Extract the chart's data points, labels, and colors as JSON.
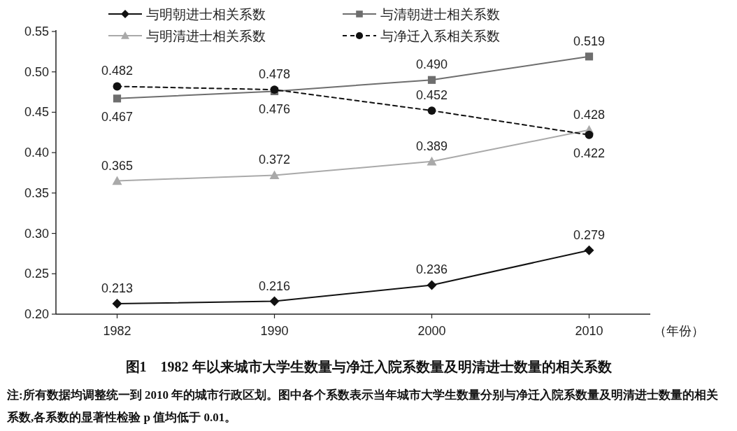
{
  "chart_data": {
    "type": "line",
    "title": "图1　1982 年以来城市大学生数量与净迁入院系数量及明清进士数量的相关系数",
    "xlabel": "（年份）",
    "categories": [
      "1982",
      "1990",
      "2000",
      "2010"
    ],
    "series": [
      {
        "name": "与明朝进士相关系数",
        "color": "#111111",
        "marker": "diamond",
        "line_style": "solid",
        "values": [
          0.213,
          0.216,
          0.236,
          0.279
        ]
      },
      {
        "name": "与清朝进士相关系数",
        "color": "#6e6e6e",
        "marker": "square",
        "line_style": "solid",
        "values": [
          0.467,
          0.476,
          0.49,
          0.519
        ],
        "value_labels": [
          "0.467",
          "0.476",
          "0.490",
          "0.519"
        ]
      },
      {
        "name": "与明清进士相关系数",
        "color": "#a9a9a9",
        "marker": "triangle",
        "line_style": "solid",
        "values": [
          0.365,
          0.372,
          0.389,
          0.428
        ]
      },
      {
        "name": "与净迁入系相关系数",
        "color": "#111111",
        "marker": "circle",
        "line_style": "dashed",
        "values": [
          0.482,
          0.478,
          0.452,
          0.422
        ]
      }
    ],
    "ylim": [
      0.2,
      0.55
    ],
    "yticks": [
      {
        "value": 0.2,
        "label": "0.20"
      },
      {
        "value": 0.25,
        "label": "0.25"
      },
      {
        "value": 0.3,
        "label": "0.30"
      },
      {
        "value": 0.35,
        "label": "0.35"
      },
      {
        "value": 0.4,
        "label": "0.40"
      },
      {
        "value": 0.45,
        "label": "0.45"
      },
      {
        "value": 0.5,
        "label": "0.50"
      },
      {
        "value": 0.55,
        "label": "0.55"
      }
    ],
    "data_labels": true,
    "grid": false,
    "legend": "top",
    "annotations": [
      "注:所有数据均调整统一到 2010 年的城市行政区划。图中各个系数表示当年城市大学生数量分别与净迁入院系数量及明清进士数量的相关系数,各系数的显著性检验 p 值均低于 0.01。"
    ]
  }
}
